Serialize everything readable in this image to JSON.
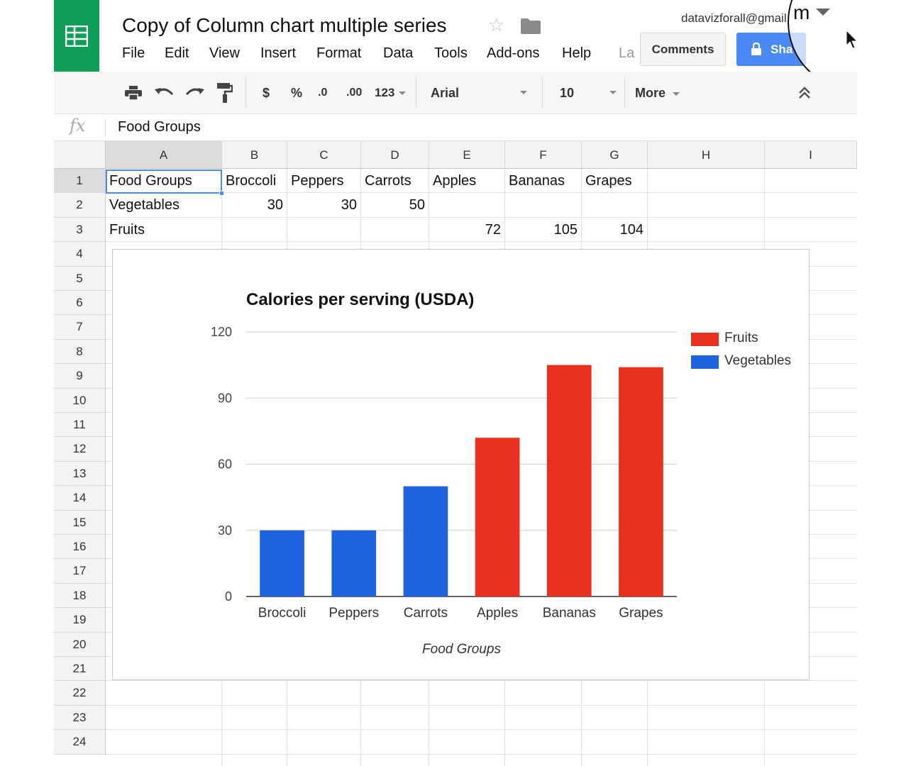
{
  "doc": {
    "title": "Copy of Column chart multiple series",
    "account": "datavizforall@gmail"
  },
  "menu": [
    "File",
    "Edit",
    "View",
    "Insert",
    "Format",
    "Data",
    "Tools",
    "Add-ons",
    "Help",
    "La"
  ],
  "buttons": {
    "comments": "Comments",
    "share": "Sha",
    "lens_letter": "m"
  },
  "toolbar": {
    "currency": "$",
    "percent": "%",
    "dec_less": ".0",
    "dec_more": ".00",
    "format": "123",
    "font": "Arial",
    "size": "10",
    "more": "More"
  },
  "formula_bar": {
    "fx": "fx",
    "value": "Food Groups"
  },
  "grid": {
    "columns": [
      "A",
      "B",
      "C",
      "D",
      "E",
      "F",
      "G",
      "H",
      "I"
    ],
    "rows": [
      "1",
      "2",
      "3",
      "4",
      "5",
      "6",
      "7",
      "8",
      "9",
      "10",
      "11",
      "12",
      "13",
      "14",
      "15",
      "16",
      "17",
      "18",
      "19",
      "20",
      "21",
      "22",
      "23",
      "24"
    ],
    "cells": {
      "A1": "Food Groups",
      "B1": "Broccoli",
      "C1": "Peppers",
      "D1": "Carrots",
      "E1": "Apples",
      "F1": "Bananas",
      "G1": "Grapes",
      "A2": "Vegetables",
      "B2": "30",
      "C2": "30",
      "D2": "50",
      "A3": "Fruits",
      "E3": "72",
      "F3": "105",
      "G3": "104"
    }
  },
  "chart_data": {
    "type": "bar",
    "title": "Calories per serving (USDA)",
    "xlabel": "Food Groups",
    "ylabel": "",
    "categories": [
      "Broccoli",
      "Peppers",
      "Carrots",
      "Apples",
      "Bananas",
      "Grapes"
    ],
    "series": [
      {
        "name": "Fruits",
        "color": "#e8311f",
        "values": [
          null,
          null,
          null,
          72,
          105,
          104
        ]
      },
      {
        "name": "Vegetables",
        "color": "#1f63de",
        "values": [
          30,
          30,
          50,
          null,
          null,
          null
        ]
      }
    ],
    "ylim": [
      0,
      120
    ],
    "yticks": [
      0,
      30,
      60,
      90,
      120
    ],
    "grid": true,
    "legend": "right"
  }
}
